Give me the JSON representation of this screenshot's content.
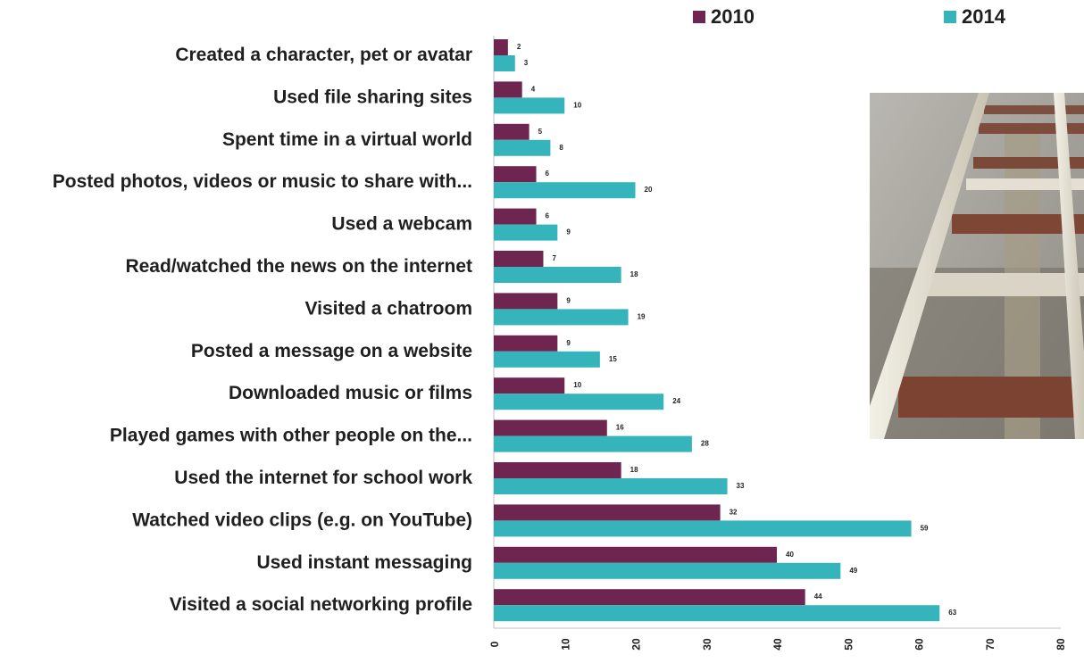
{
  "colors": {
    "series_2010": "#6e2650",
    "series_2014": "#35b5bb",
    "axis": "#bfbfbf"
  },
  "chart_data": {
    "type": "bar",
    "orientation": "horizontal",
    "title": "",
    "xlabel": "",
    "ylabel": "",
    "categories": [
      "Created a character, pet or avatar",
      "Used file sharing sites",
      "Spent time in a virtual world",
      "Posted photos, videos or music to share with...",
      "Used a webcam",
      "Read/watched the news on the internet",
      "Visited a chatroom",
      "Posted a message on a website",
      "Downloaded music or films",
      "Played games with other people on the...",
      "Used the internet for school work",
      "Watched video clips (e.g. on YouTube)",
      "Used instant messaging",
      "Visited a social networking profile"
    ],
    "series": [
      {
        "name": "2010",
        "values": [
          2,
          4,
          5,
          6,
          6,
          7,
          9,
          9,
          10,
          16,
          18,
          32,
          40,
          44
        ]
      },
      {
        "name": "2014",
        "values": [
          3,
          10,
          8,
          20,
          9,
          18,
          19,
          15,
          24,
          28,
          33,
          59,
          49,
          63
        ]
      }
    ],
    "xlim": [
      0,
      80
    ],
    "xticks": [
      0,
      10,
      20,
      30,
      40,
      50,
      60,
      70,
      80
    ],
    "grid": false,
    "legend_position": "top-right"
  },
  "photo": {
    "subject": "ladder-photo"
  }
}
